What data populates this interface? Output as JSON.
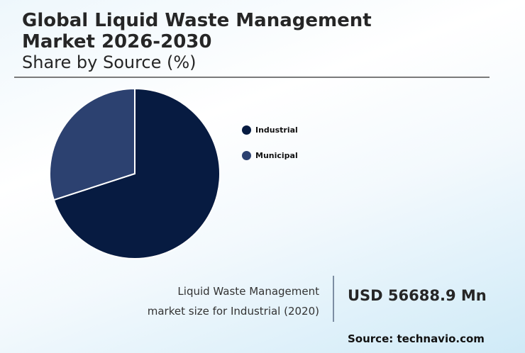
{
  "header": {
    "title_line1": "Global Liquid Waste Management",
    "title_line2": "Market 2026-2030",
    "subtitle": "Share by Source (%)"
  },
  "legend": [
    {
      "label": "Industrial",
      "color": "#071b41"
    },
    {
      "label": "Municipal",
      "color": "#2c4170"
    }
  ],
  "stat": {
    "label_line1": "Liquid Waste Management",
    "label_line2": "market size for Industrial (2020)",
    "value": "USD 56688.9 Mn"
  },
  "footer": {
    "source": "Source: technavio.com"
  },
  "chart_data": {
    "type": "pie",
    "title": "Global Liquid Waste Management Market 2026-2030",
    "subtitle": "Share by Source (%)",
    "categories": [
      "Industrial",
      "Municipal"
    ],
    "values": [
      70,
      30
    ],
    "colors": [
      "#071b41",
      "#2c4170"
    ],
    "legend_position": "right",
    "annotation": "Liquid Waste Management market size for Industrial (2020): USD 56688.9 Mn",
    "source": "Source: technavio.com"
  }
}
